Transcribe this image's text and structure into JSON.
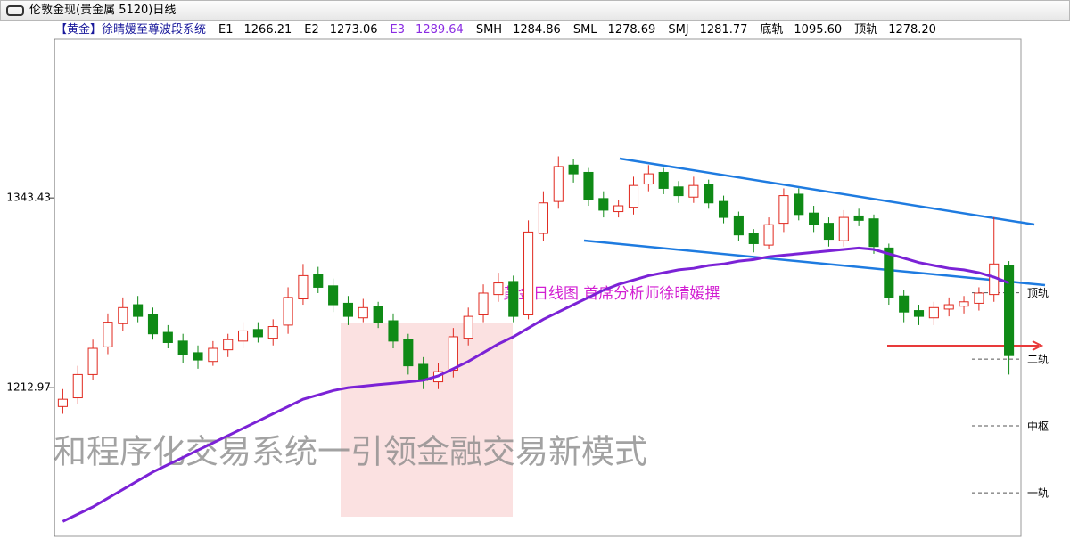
{
  "chart_data": {
    "type": "candlestick",
    "title": "伦敦金现(贵金属 5120)日线",
    "indicator_name": "【黄金】徐晴媛至尊波段系统",
    "indicators": [
      {
        "label": "E1",
        "value": "1266.21",
        "color": "#000000"
      },
      {
        "label": "E2",
        "value": "1273.06",
        "color": "#000000"
      },
      {
        "label": "E3",
        "value": "1289.64",
        "color": "#8a2be2"
      },
      {
        "label": "SMH",
        "value": "1284.86",
        "color": "#000000"
      },
      {
        "label": "SML",
        "value": "1278.69",
        "color": "#000000"
      },
      {
        "label": "SMJ",
        "value": "1281.77",
        "color": "#000000"
      },
      {
        "label": "底轨",
        "value": "1095.60",
        "color": "#000000"
      },
      {
        "label": "顶轨",
        "value": "1278.20",
        "color": "#000000"
      }
    ],
    "annotation": "黄金日线图  首席分析师徐晴媛撰",
    "watermark": "和程序化交易系统一引领金融交易新模式",
    "ylim": [
      1112,
      1455
    ],
    "yticks": [
      1343.43,
      1212.97
    ],
    "up_color": "#e0281e",
    "down_color": "#0f8a16",
    "open": [
      1200,
      1206,
      1222,
      1241,
      1257,
      1270,
      1263,
      1251,
      1245,
      1237,
      1231,
      1239,
      1245,
      1253,
      1247,
      1256,
      1274,
      1291,
      1283,
      1271,
      1261,
      1269,
      1259,
      1246,
      1229,
      1217,
      1225,
      1247,
      1263,
      1277,
      1286,
      1263,
      1319,
      1341,
      1366,
      1361,
      1343,
      1334,
      1337,
      1353,
      1361,
      1351,
      1344,
      1353,
      1341,
      1331,
      1319,
      1311,
      1326,
      1346,
      1333,
      1326,
      1314,
      1331,
      1329,
      1309,
      1276,
      1266,
      1261,
      1267,
      1269,
      1271,
      1277,
      1297
    ],
    "high": [
      1212,
      1228,
      1246,
      1264,
      1275,
      1276,
      1268,
      1256,
      1250,
      1242,
      1245,
      1250,
      1258,
      1258,
      1260,
      1282,
      1298,
      1296,
      1288,
      1276,
      1274,
      1272,
      1264,
      1250,
      1234,
      1230,
      1254,
      1268,
      1284,
      1292,
      1290,
      1328,
      1348,
      1372,
      1370,
      1364,
      1348,
      1342,
      1358,
      1366,
      1364,
      1355,
      1358,
      1356,
      1345,
      1334,
      1322,
      1330,
      1350,
      1350,
      1338,
      1330,
      1335,
      1336,
      1332,
      1312,
      1280,
      1270,
      1272,
      1275,
      1276,
      1282,
      1330,
      1300
    ],
    "low": [
      1195,
      1202,
      1218,
      1236,
      1252,
      1258,
      1246,
      1240,
      1230,
      1226,
      1228,
      1234,
      1240,
      1244,
      1242,
      1250,
      1270,
      1278,
      1265,
      1256,
      1258,
      1254,
      1240,
      1222,
      1212,
      1212,
      1220,
      1242,
      1258,
      1272,
      1258,
      1260,
      1314,
      1336,
      1354,
      1338,
      1330,
      1330,
      1332,
      1348,
      1346,
      1340,
      1340,
      1336,
      1326,
      1314,
      1306,
      1308,
      1320,
      1328,
      1320,
      1310,
      1310,
      1324,
      1305,
      1270,
      1258,
      1256,
      1256,
      1262,
      1264,
      1266,
      1272,
      1222
    ],
    "close": [
      1205,
      1222,
      1240,
      1258,
      1268,
      1262,
      1250,
      1244,
      1236,
      1232,
      1240,
      1246,
      1252,
      1248,
      1255,
      1275,
      1290,
      1282,
      1270,
      1262,
      1268,
      1258,
      1245,
      1228,
      1218,
      1224,
      1248,
      1262,
      1278,
      1285,
      1262,
      1320,
      1340,
      1365,
      1360,
      1342,
      1335,
      1338,
      1352,
      1360,
      1350,
      1345,
      1352,
      1340,
      1330,
      1318,
      1312,
      1325,
      1345,
      1332,
      1325,
      1315,
      1330,
      1328,
      1310,
      1275,
      1265,
      1262,
      1268,
      1270,
      1272,
      1278,
      1298,
      1235
    ],
    "ma_line": {
      "color": "#7b22d6",
      "values": [
        1121,
        1126,
        1131,
        1137,
        1143,
        1149,
        1155,
        1160,
        1165,
        1170,
        1175,
        1180,
        1185,
        1190,
        1195,
        1200,
        1205,
        1208,
        1211,
        1213,
        1214,
        1215,
        1216,
        1217,
        1218,
        1221,
        1226,
        1231,
        1237,
        1243,
        1248,
        1254,
        1260,
        1265,
        1270,
        1275,
        1280,
        1284,
        1287,
        1290,
        1292,
        1294,
        1295,
        1297,
        1298,
        1300,
        1301,
        1303,
        1304,
        1305,
        1306,
        1307,
        1308,
        1309,
        1308,
        1305,
        1302,
        1299,
        1297,
        1295,
        1294,
        1292,
        1289,
        1285
      ]
    },
    "levels": [
      {
        "label": "顶轨",
        "value": 1278.2
      },
      {
        "label": "二轨",
        "value": 1232.6
      },
      {
        "label": "中枢",
        "value": 1186.7
      },
      {
        "label": "一轨",
        "value": 1140.7
      }
    ]
  }
}
